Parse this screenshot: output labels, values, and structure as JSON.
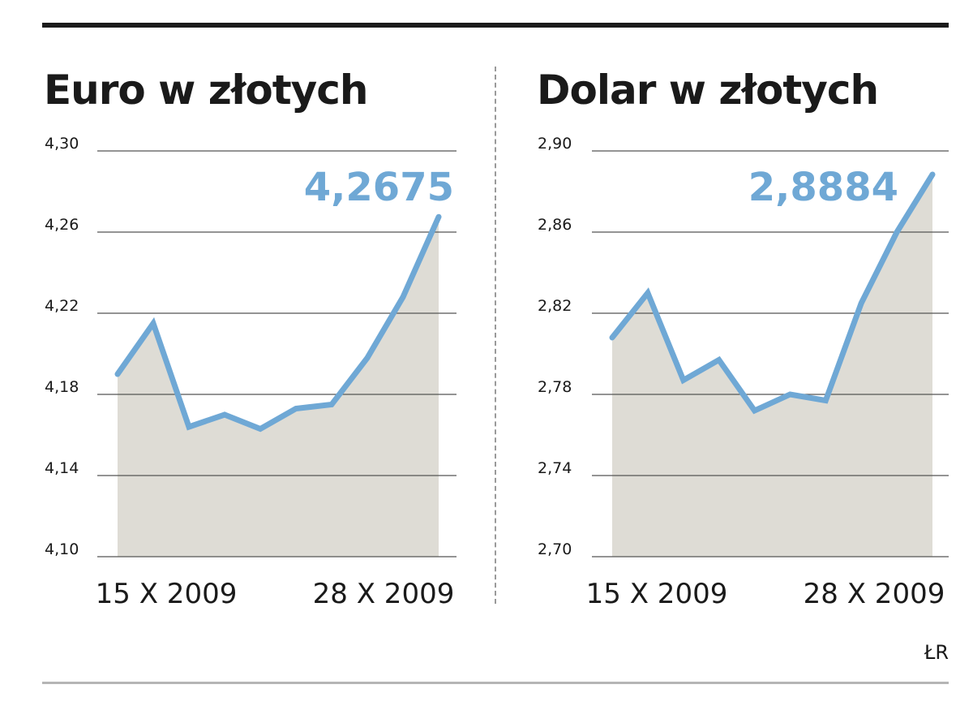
{
  "credit": "ŁR",
  "chart_data": [
    {
      "type": "area",
      "title": "Euro w złotych",
      "highlight_label": "4,2675",
      "x_tick_labels": [
        "15 X 2009",
        "28 X 2009"
      ],
      "y_ticks": [
        "4,30",
        "4,26",
        "4,22",
        "4,18",
        "4,14",
        "4,10"
      ],
      "ylim": [
        4.1,
        4.3
      ],
      "grid": true,
      "series": [
        {
          "values": [
            4.19,
            4.215,
            4.164,
            4.17,
            4.163,
            4.173,
            4.175,
            4.198,
            4.228,
            4.2675
          ]
        }
      ],
      "colors": {
        "line": "#6fa8d5",
        "fill": "#dedcd5",
        "grid": "#555555",
        "highlight": "#6fa8d5"
      }
    },
    {
      "type": "area",
      "title": "Dolar w złotych",
      "highlight_label": "2,8884",
      "x_tick_labels": [
        "15 X 2009",
        "28 X 2009"
      ],
      "y_ticks": [
        "2,90",
        "2,86",
        "2,82",
        "2,78",
        "2,74",
        "2,70"
      ],
      "ylim": [
        2.7,
        2.9
      ],
      "grid": true,
      "series": [
        {
          "values": [
            2.808,
            2.83,
            2.787,
            2.797,
            2.772,
            2.78,
            2.777,
            2.825,
            2.86,
            2.8884
          ]
        }
      ],
      "colors": {
        "line": "#6fa8d5",
        "fill": "#dedcd5",
        "grid": "#555555",
        "highlight": "#6fa8d5"
      }
    }
  ]
}
